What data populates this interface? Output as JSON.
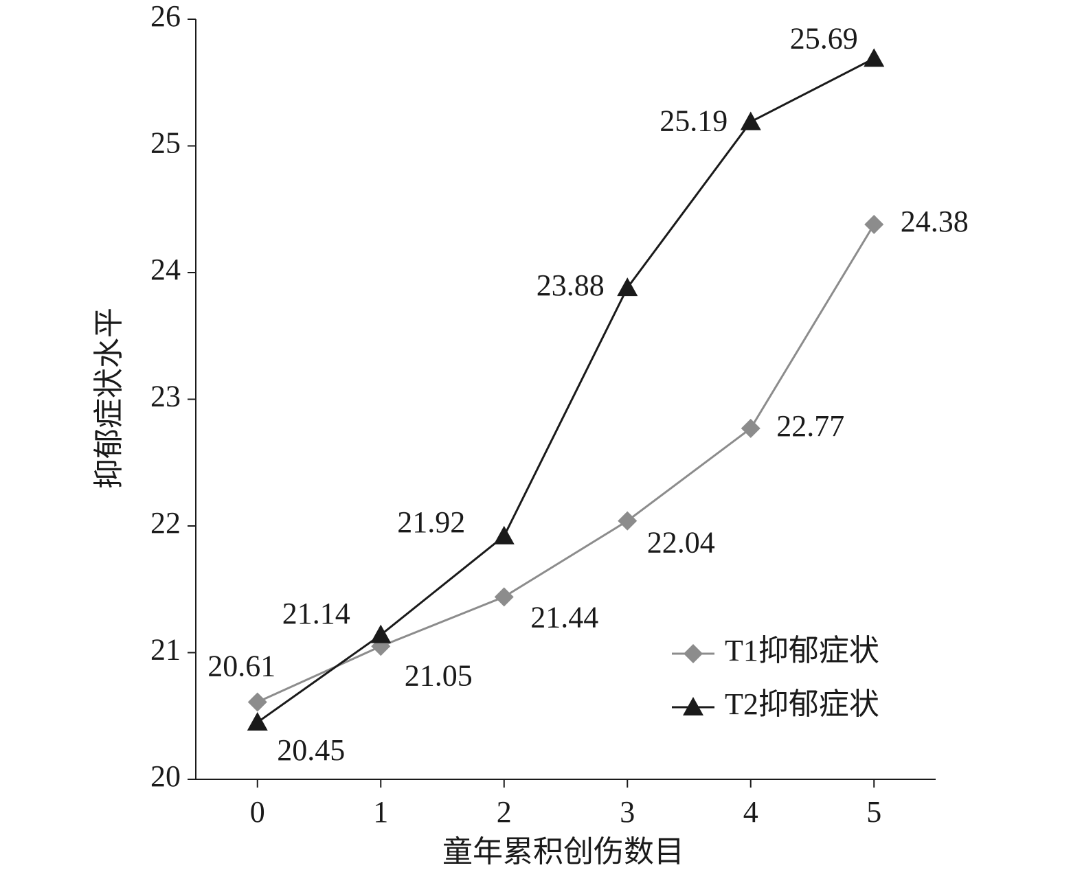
{
  "chart_data": {
    "type": "line",
    "x_label": "童年累积创伤数目",
    "y_label": "抑郁症状水平",
    "categories": [
      "0",
      "1",
      "2",
      "3",
      "4",
      "5"
    ],
    "series": [
      {
        "name": "T1抑郁症状",
        "color": "#8c8c8c",
        "marker": "diamond",
        "values": [
          20.61,
          21.05,
          21.44,
          22.04,
          22.77,
          24.38
        ]
      },
      {
        "name": "T2抑郁症状",
        "color": "#1a1a1a",
        "marker": "triangle",
        "values": [
          20.45,
          21.14,
          21.92,
          23.88,
          25.19,
          25.69
        ]
      }
    ],
    "ylim": [
      20,
      26
    ],
    "yticks": [
      20,
      21,
      22,
      23,
      24,
      25,
      26
    ],
    "grid": false,
    "legend": "lower right"
  }
}
